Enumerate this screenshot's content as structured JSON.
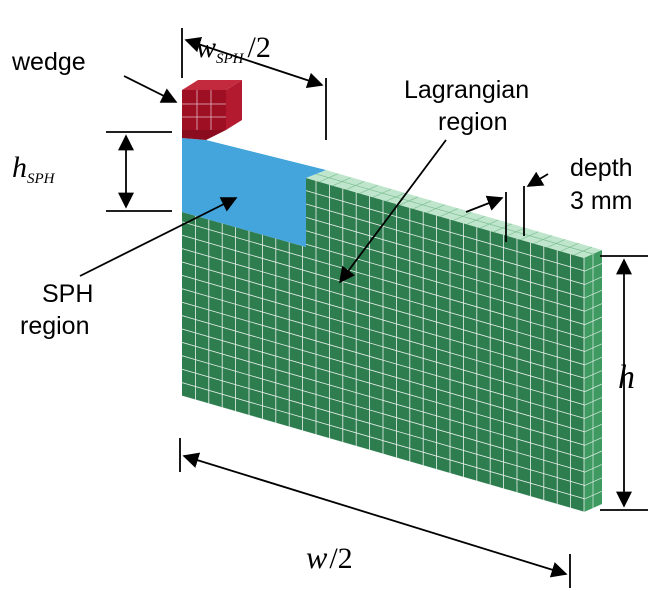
{
  "labels": {
    "wedge": "wedge",
    "lagrangian_line1": "Lagrangian",
    "lagrangian_line2": "region",
    "depth_line1": "depth",
    "depth_line2": "3 mm",
    "sph_line1": "SPH",
    "sph_line2": "region"
  },
  "dimensions": {
    "w_sph_var": "w",
    "w_sph_sub": "SPH",
    "w_sph_div": "/2",
    "h_sph_var": "h",
    "h_sph_sub": "SPH",
    "h_var": "h",
    "w_var": "w",
    "w_div": "/2"
  },
  "colors": {
    "lagrangian_front": "#2e7d4f",
    "lagrangian_top": "#bfe6cc",
    "lagrangian_side": "#3f9a62",
    "sph": "#44a4dc",
    "wedge_front": "#9e0f24",
    "wedge_top": "#c42a3e",
    "grid_line": "#ffffff"
  }
}
